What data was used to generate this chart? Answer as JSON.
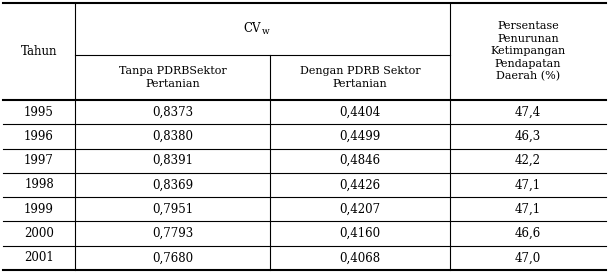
{
  "years": [
    "1995",
    "1996",
    "1997",
    "1998",
    "1999",
    "2000",
    "2001"
  ],
  "col1_values": [
    "0,8373",
    "0,8380",
    "0,8391",
    "0,8369",
    "0,7951",
    "0,7793",
    "0,7680"
  ],
  "col2_values": [
    "0,4404",
    "0,4499",
    "0,4846",
    "0,4426",
    "0,4207",
    "0,4160",
    "0,4068"
  ],
  "col3_values": [
    "47,4",
    "46,3",
    "42,2",
    "47,1",
    "47,1",
    "46,6",
    "47,0"
  ],
  "header_tahun": "Tahun",
  "header_cvw_main": "CV",
  "header_cvw_sub": "w",
  "header_persentase": "Persentase\nPenurunan\nKetimpangan\nPendapatan\nDaerah (%)",
  "header_tanpa": "Tanpa PDRBSektor\nPertanian",
  "header_dengan": "Dengan PDRB Sektor\nPertanian",
  "bg_color": "#ffffff",
  "text_color": "#000000",
  "line_color": "#000000",
  "fontsize": 8.5,
  "header_fontsize": 8.5
}
